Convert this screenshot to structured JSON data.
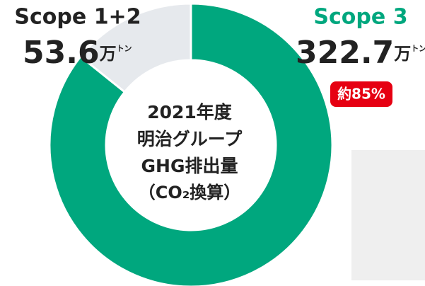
{
  "chart_data": {
    "type": "donut",
    "center_text": [
      "2021年度",
      "明治グループ",
      "GHG排出量",
      "（CO₂換算）"
    ],
    "series": [
      {
        "name": "Scope 3",
        "color": "#00a77e",
        "value": 322.7,
        "unit": "万",
        "unit_small": "トン",
        "badge": "約85%"
      },
      {
        "name": "Scope 1+2",
        "color": "#e6e9ed",
        "value": 53.6,
        "unit": "万",
        "unit_small": "トン"
      }
    ]
  }
}
